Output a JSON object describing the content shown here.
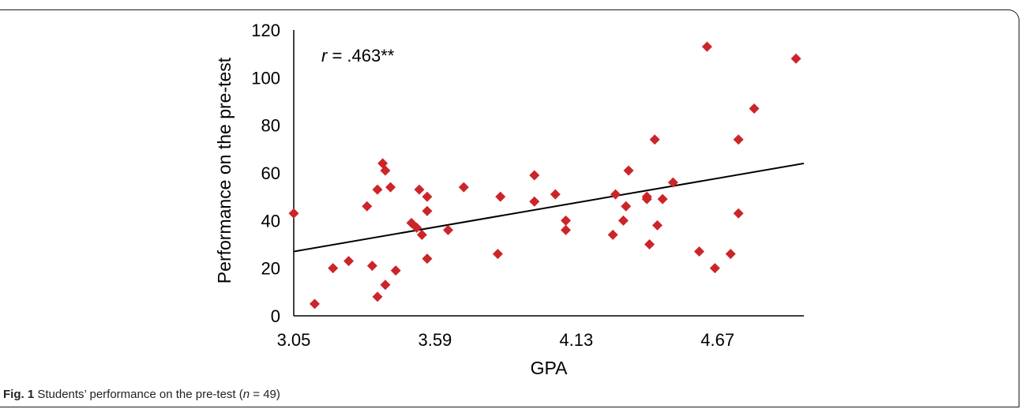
{
  "caption": {
    "label": "Fig. 1",
    "text_before": " Students’ performance on the pre-test (",
    "n_var": "n",
    "n_eq": " = 49",
    "text_after": ")"
  },
  "chart_data": {
    "type": "scatter",
    "xlabel": "GPA",
    "ylabel": "Performance on the pre-test",
    "xlim": [
      3.05,
      5.0
    ],
    "ylim": [
      0,
      120
    ],
    "x_ticks": [
      3.05,
      3.59,
      4.13,
      4.67
    ],
    "x_tick_labels": [
      "3.05",
      "3.59",
      "4.13",
      "4.67"
    ],
    "y_ticks": [
      0,
      20,
      40,
      60,
      80,
      100,
      120
    ],
    "y_tick_labels": [
      "0",
      "20",
      "40",
      "60",
      "80",
      "100",
      "120"
    ],
    "annotation": {
      "r_var": "r",
      "r_value": " = .463**"
    },
    "marker_color": "#cc2529",
    "trendline": {
      "x": [
        3.05,
        5.0
      ],
      "y": [
        27,
        64
      ]
    },
    "points": [
      [
        3.05,
        43
      ],
      [
        3.13,
        5
      ],
      [
        3.2,
        20
      ],
      [
        3.26,
        23
      ],
      [
        3.33,
        46
      ],
      [
        3.35,
        21
      ],
      [
        3.37,
        53
      ],
      [
        3.37,
        8
      ],
      [
        3.39,
        64
      ],
      [
        3.4,
        61
      ],
      [
        3.4,
        13
      ],
      [
        3.42,
        54
      ],
      [
        3.44,
        19
      ],
      [
        3.5,
        39
      ],
      [
        3.52,
        37
      ],
      [
        3.53,
        53
      ],
      [
        3.54,
        34
      ],
      [
        3.56,
        50
      ],
      [
        3.56,
        44
      ],
      [
        3.56,
        24
      ],
      [
        3.64,
        36
      ],
      [
        3.7,
        54
      ],
      [
        3.83,
        26
      ],
      [
        3.84,
        50
      ],
      [
        3.97,
        59
      ],
      [
        3.97,
        48
      ],
      [
        4.05,
        51
      ],
      [
        4.09,
        40
      ],
      [
        4.09,
        36
      ],
      [
        4.27,
        34
      ],
      [
        4.28,
        51
      ],
      [
        4.31,
        40
      ],
      [
        4.32,
        46
      ],
      [
        4.33,
        61
      ],
      [
        4.4,
        49
      ],
      [
        4.4,
        50
      ],
      [
        4.41,
        30
      ],
      [
        4.43,
        74
      ],
      [
        4.44,
        38
      ],
      [
        4.46,
        49
      ],
      [
        4.5,
        56
      ],
      [
        4.6,
        27
      ],
      [
        4.63,
        113
      ],
      [
        4.66,
        20
      ],
      [
        4.72,
        26
      ],
      [
        4.75,
        74
      ],
      [
        4.75,
        43
      ],
      [
        4.81,
        87
      ],
      [
        4.97,
        108
      ]
    ]
  }
}
